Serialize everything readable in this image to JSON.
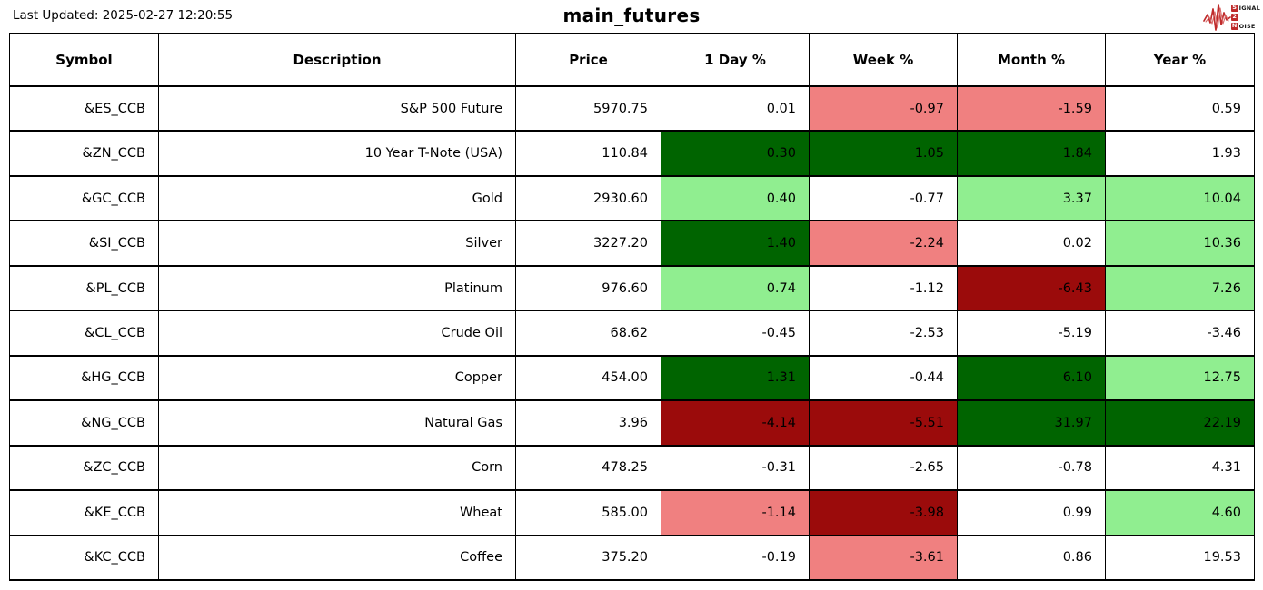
{
  "header": {
    "last_updated": "Last Updated: 2025-02-27 12:20:55",
    "title": "main_futures",
    "logo": {
      "signal_boxed": "S",
      "signal_rest": "IGNAL",
      "middle_boxed": "2",
      "noise_boxed": "N",
      "noise_rest": "OISE"
    }
  },
  "colors": {
    "none": "#FFFFFF",
    "dark_green": "#006400",
    "light_green": "#90EE90",
    "light_red": "#F08080",
    "dark_red": "#9B0B0B",
    "logo_red": "#BF2B2B",
    "border": "#000000"
  },
  "chart_data": {
    "type": "table",
    "title": "main_futures",
    "columns": [
      "Symbol",
      "Description",
      "Price",
      "1 Day %",
      "Week %",
      "Month %",
      "Year %"
    ],
    "rows": [
      {
        "symbol": "&ES_CCB",
        "description": "S&P 500 Future",
        "price": "5970.75",
        "changes": [
          {
            "value": "0.01",
            "bg": "none"
          },
          {
            "value": "-0.97",
            "bg": "light_red"
          },
          {
            "value": "-1.59",
            "bg": "light_red"
          },
          {
            "value": "0.59",
            "bg": "none"
          }
        ]
      },
      {
        "symbol": "&ZN_CCB",
        "description": "10 Year T-Note (USA)",
        "price": "110.84",
        "changes": [
          {
            "value": "0.30",
            "bg": "dark_green"
          },
          {
            "value": "1.05",
            "bg": "dark_green"
          },
          {
            "value": "1.84",
            "bg": "dark_green"
          },
          {
            "value": "1.93",
            "bg": "none"
          }
        ]
      },
      {
        "symbol": "&GC_CCB",
        "description": "Gold",
        "price": "2930.60",
        "changes": [
          {
            "value": "0.40",
            "bg": "light_green"
          },
          {
            "value": "-0.77",
            "bg": "none"
          },
          {
            "value": "3.37",
            "bg": "light_green"
          },
          {
            "value": "10.04",
            "bg": "light_green"
          }
        ]
      },
      {
        "symbol": "&SI_CCB",
        "description": "Silver",
        "price": "3227.20",
        "changes": [
          {
            "value": "1.40",
            "bg": "dark_green"
          },
          {
            "value": "-2.24",
            "bg": "light_red"
          },
          {
            "value": "0.02",
            "bg": "none"
          },
          {
            "value": "10.36",
            "bg": "light_green"
          }
        ]
      },
      {
        "symbol": "&PL_CCB",
        "description": "Platinum",
        "price": "976.60",
        "changes": [
          {
            "value": "0.74",
            "bg": "light_green"
          },
          {
            "value": "-1.12",
            "bg": "none"
          },
          {
            "value": "-6.43",
            "bg": "dark_red"
          },
          {
            "value": "7.26",
            "bg": "light_green"
          }
        ]
      },
      {
        "symbol": "&CL_CCB",
        "description": "Crude Oil",
        "price": "68.62",
        "changes": [
          {
            "value": "-0.45",
            "bg": "none"
          },
          {
            "value": "-2.53",
            "bg": "none"
          },
          {
            "value": "-5.19",
            "bg": "none"
          },
          {
            "value": "-3.46",
            "bg": "none"
          }
        ]
      },
      {
        "symbol": "&HG_CCB",
        "description": "Copper",
        "price": "454.00",
        "changes": [
          {
            "value": "1.31",
            "bg": "dark_green"
          },
          {
            "value": "-0.44",
            "bg": "none"
          },
          {
            "value": "6.10",
            "bg": "dark_green"
          },
          {
            "value": "12.75",
            "bg": "light_green"
          }
        ]
      },
      {
        "symbol": "&NG_CCB",
        "description": "Natural Gas",
        "price": "3.96",
        "changes": [
          {
            "value": "-4.14",
            "bg": "dark_red"
          },
          {
            "value": "-5.51",
            "bg": "dark_red"
          },
          {
            "value": "31.97",
            "bg": "dark_green"
          },
          {
            "value": "22.19",
            "bg": "dark_green"
          }
        ]
      },
      {
        "symbol": "&ZC_CCB",
        "description": "Corn",
        "price": "478.25",
        "changes": [
          {
            "value": "-0.31",
            "bg": "none"
          },
          {
            "value": "-2.65",
            "bg": "none"
          },
          {
            "value": "-0.78",
            "bg": "none"
          },
          {
            "value": "4.31",
            "bg": "none"
          }
        ]
      },
      {
        "symbol": "&KE_CCB",
        "description": "Wheat",
        "price": "585.00",
        "changes": [
          {
            "value": "-1.14",
            "bg": "light_red"
          },
          {
            "value": "-3.98",
            "bg": "dark_red"
          },
          {
            "value": "0.99",
            "bg": "none"
          },
          {
            "value": "4.60",
            "bg": "light_green"
          }
        ]
      },
      {
        "symbol": "&KC_CCB",
        "description": "Coffee",
        "price": "375.20",
        "changes": [
          {
            "value": "-0.19",
            "bg": "none"
          },
          {
            "value": "-3.61",
            "bg": "light_red"
          },
          {
            "value": "0.86",
            "bg": "none"
          },
          {
            "value": "19.53",
            "bg": "none"
          }
        ]
      }
    ]
  }
}
